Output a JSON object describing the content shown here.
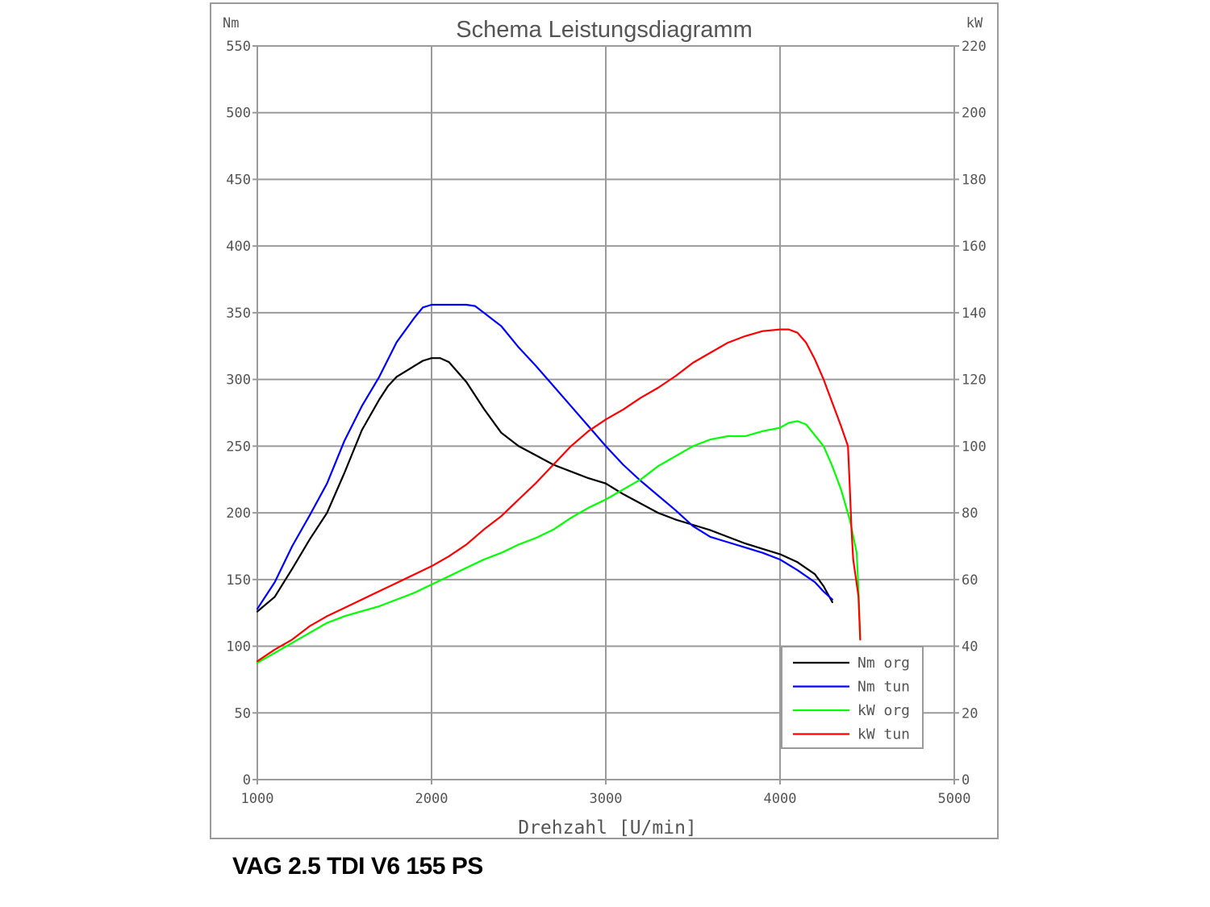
{
  "caption": "VAG 2.5 TDI V6 155 PS",
  "chart_data": {
    "type": "line",
    "title": "Schema Leistungsdiagramm",
    "xlabel": "Drehzahl [U/min]",
    "ylabel_left": "Nm",
    "ylabel_right": "kW",
    "xlim": [
      1000,
      5000
    ],
    "ylim_left": [
      0,
      550
    ],
    "ylim_right": [
      0,
      220
    ],
    "x_ticks": [
      "1000",
      "2000",
      "3000",
      "4000",
      "5000"
    ],
    "y_ticks_left": [
      "0",
      "50",
      "100",
      "150",
      "200",
      "250",
      "300",
      "350",
      "400",
      "450",
      "500",
      "550"
    ],
    "y_ticks_right": [
      "0",
      "20",
      "40",
      "60",
      "80",
      "100",
      "120",
      "140",
      "160",
      "180",
      "200",
      "220"
    ],
    "grid": true,
    "legend_position": "bottom-right",
    "series": [
      {
        "name": "Nm org",
        "axis": "left",
        "color": "#000000",
        "x": [
          1000,
          1100,
          1200,
          1300,
          1400,
          1500,
          1600,
          1700,
          1750,
          1800,
          1900,
          1950,
          2000,
          2050,
          2100,
          2200,
          2300,
          2400,
          2500,
          2600,
          2700,
          2800,
          2900,
          3000,
          3100,
          3200,
          3300,
          3400,
          3500,
          3600,
          3700,
          3800,
          3900,
          4000,
          4100,
          4200,
          4250,
          4300
        ],
        "y": [
          126,
          137,
          158,
          180,
          200,
          230,
          262,
          285,
          295,
          302,
          310,
          314,
          316,
          316,
          313,
          298,
          278,
          260,
          250,
          243,
          236,
          231,
          226,
          222,
          214,
          207,
          200,
          195,
          191,
          187,
          182,
          177,
          173,
          169,
          163,
          154,
          145,
          133
        ]
      },
      {
        "name": "Nm tun",
        "axis": "left",
        "color": "#0000ff",
        "x": [
          1000,
          1100,
          1200,
          1300,
          1400,
          1500,
          1600,
          1700,
          1800,
          1900,
          1950,
          2000,
          2100,
          2200,
          2250,
          2300,
          2400,
          2500,
          2600,
          2700,
          2800,
          2900,
          3000,
          3100,
          3200,
          3300,
          3400,
          3500,
          3600,
          3700,
          3800,
          3900,
          4000,
          4100,
          4200,
          4250,
          4300
        ],
        "y": [
          128,
          148,
          175,
          198,
          222,
          254,
          280,
          302,
          328,
          346,
          354,
          356,
          356,
          356,
          355,
          350,
          340,
          324,
          310,
          295,
          280,
          265,
          250,
          236,
          224,
          213,
          202,
          190,
          182,
          178,
          174,
          170,
          165,
          157,
          148,
          141,
          135
        ]
      },
      {
        "name": "kW org",
        "axis": "right",
        "color": "#00ff00",
        "x": [
          1000,
          1100,
          1200,
          1300,
          1400,
          1500,
          1600,
          1700,
          1800,
          1900,
          2000,
          2100,
          2200,
          2300,
          2400,
          2500,
          2600,
          2700,
          2800,
          2900,
          3000,
          3100,
          3200,
          3300,
          3400,
          3500,
          3600,
          3700,
          3800,
          3900,
          4000,
          4050,
          4100,
          4150,
          4250,
          4300,
          4350,
          4400,
          4440,
          4450,
          4460
        ],
        "y": [
          35,
          38,
          41,
          44,
          47,
          49,
          50.5,
          52,
          54,
          56,
          58.5,
          61,
          63.5,
          66,
          68,
          70.5,
          72.5,
          75,
          78.5,
          81.5,
          84,
          87,
          90,
          94,
          97,
          100,
          102,
          103,
          103,
          104.5,
          105.5,
          107,
          107.5,
          106.5,
          100,
          94,
          87,
          78,
          68,
          57,
          42
        ]
      },
      {
        "name": "kW tun",
        "axis": "right",
        "color": "#ff0000",
        "x": [
          1000,
          1100,
          1200,
          1300,
          1400,
          1500,
          1600,
          1700,
          1800,
          1900,
          2000,
          2100,
          2200,
          2300,
          2400,
          2500,
          2600,
          2700,
          2800,
          2900,
          3000,
          3100,
          3200,
          3300,
          3400,
          3500,
          3600,
          3700,
          3800,
          3900,
          4000,
          4050,
          4100,
          4150,
          4200,
          4250,
          4300,
          4350,
          4390,
          4400,
          4410,
          4420,
          4450,
          4460
        ],
        "y": [
          35.5,
          39,
          42,
          46,
          49,
          51.5,
          54,
          56.5,
          59,
          61.5,
          64,
          67,
          70.5,
          75,
          79,
          84,
          89,
          94.5,
          100,
          104.5,
          108,
          111,
          114.5,
          117.5,
          121,
          125,
          128,
          131,
          133,
          134.5,
          135,
          135,
          134,
          131,
          126,
          120,
          113,
          106,
          100,
          88,
          75,
          66,
          55,
          42
        ]
      }
    ]
  }
}
